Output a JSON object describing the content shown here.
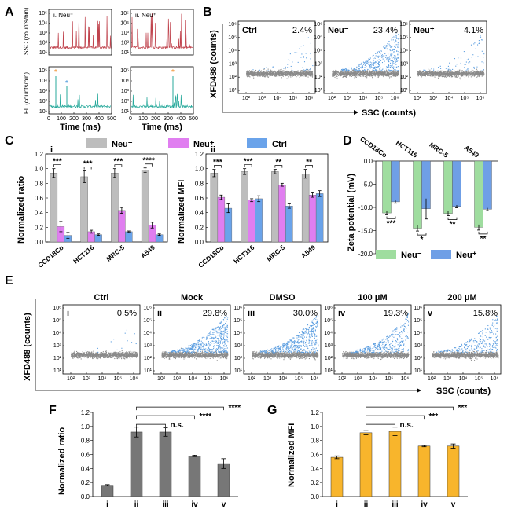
{
  "colors": {
    "red_trace": "#c0444e",
    "teal_trace": "#27a99b",
    "orange_dot": "#f08a24",
    "blue_dot": "#3a8fd8",
    "gray_scatter": "#8a8a8a",
    "blue_scatter": "#5a9de0",
    "bar_gray": "#bdbdbd",
    "bar_magenta": "#e07ef0",
    "bar_blue": "#6aa3ea",
    "zeta_green": "#9fdd9f",
    "zeta_blue": "#6f9fe6",
    "bar_darkgray": "#777777",
    "bar_orange": "#f8b52c"
  },
  "labels": {
    "A": "A",
    "B": "B",
    "C": "C",
    "D": "D",
    "E": "E",
    "F": "F",
    "G": "G"
  },
  "chart_data": [
    {
      "id": "A",
      "type": "line",
      "subpanels": [
        "i. Neu⁻",
        "ii. Neu⁺"
      ],
      "xlabel": "Time (ms)",
      "ylabel_top": "SSC (counts/bin)",
      "ylabel_bottom": "FL (counts/bin)",
      "x_ticks_left": [
        "0",
        "100",
        "200",
        "300",
        "400",
        "500"
      ],
      "x_ticks_right": [
        "0",
        "100",
        "200",
        "300",
        "400",
        "500"
      ],
      "y_ticks": [
        "10¹",
        "10²",
        "10³",
        "10⁴",
        "10⁵"
      ],
      "xlim": [
        0,
        500
      ]
    },
    {
      "id": "B",
      "type": "scatter",
      "xlabel": "SSC (counts)",
      "ylabel": "XFD488 (counts)",
      "x_ticks": [
        "10²",
        "10³",
        "10⁴",
        "10⁵",
        "10⁶"
      ],
      "y_ticks": [
        "10¹",
        "10²",
        "10³",
        "10⁴",
        "10⁵",
        "10⁶"
      ],
      "plots": [
        {
          "name": "Ctrl",
          "percent": "2.4%",
          "positive_fraction": 0.024
        },
        {
          "name": "Neu⁻",
          "percent": "23.4%",
          "positive_fraction": 0.234
        },
        {
          "name": "Neu⁺",
          "percent": "4.1%",
          "positive_fraction": 0.041
        }
      ]
    },
    {
      "id": "C-i",
      "type": "bar",
      "sublabel": "i",
      "ylabel": "Normalized ratio",
      "ylim": [
        0,
        1.2
      ],
      "y_ticks": [
        "0.0",
        "0.2",
        "0.4",
        "0.6",
        "0.8",
        "1.0",
        "1.2"
      ],
      "categories": [
        "CCD18Co",
        "HCT116",
        "MRC-5",
        "A549"
      ],
      "legend": [
        "Neu⁻",
        "Neu⁺",
        "Ctrl"
      ],
      "series": [
        {
          "name": "Neu⁻",
          "values": [
            0.94,
            0.89,
            0.94,
            0.98
          ],
          "errors": [
            0.06,
            0.08,
            0.06,
            0.03
          ]
        },
        {
          "name": "Neu⁺",
          "values": [
            0.21,
            0.14,
            0.43,
            0.23
          ],
          "errors": [
            0.07,
            0.02,
            0.04,
            0.04
          ]
        },
        {
          "name": "Ctrl",
          "values": [
            0.09,
            0.1,
            0.14,
            0.1
          ],
          "errors": [
            0.04,
            0.01,
            0.01,
            0.01
          ]
        }
      ],
      "significance": [
        "***",
        "***",
        "***",
        "****"
      ]
    },
    {
      "id": "C-ii",
      "type": "bar",
      "sublabel": "ii",
      "ylabel": "Normalized MFI",
      "ylim": [
        0,
        1.2
      ],
      "y_ticks": [
        "0.0",
        "0.2",
        "0.4",
        "0.6",
        "0.8",
        "1.0",
        "1.2"
      ],
      "categories": [
        "CCD18Co",
        "HCT116",
        "MRC-5",
        "A549"
      ],
      "series": [
        {
          "name": "Neu⁻",
          "values": [
            0.94,
            0.96,
            0.96,
            0.93
          ],
          "errors": [
            0.05,
            0.04,
            0.03,
            0.06
          ]
        },
        {
          "name": "Neu⁺",
          "values": [
            0.61,
            0.57,
            0.78,
            0.64
          ],
          "errors": [
            0.03,
            0.02,
            0.02,
            0.03
          ]
        },
        {
          "name": "Ctrl",
          "values": [
            0.46,
            0.59,
            0.49,
            0.66
          ],
          "errors": [
            0.06,
            0.04,
            0.03,
            0.04
          ]
        }
      ],
      "significance": [
        "***",
        "***",
        "**",
        "**"
      ]
    },
    {
      "id": "D",
      "type": "bar",
      "ylabel": "Zeta potential (mV)",
      "ylim": [
        -20,
        0
      ],
      "y_ticks": [
        "0.0",
        "-5.0",
        "-10.0",
        "-15.0",
        "-20.0"
      ],
      "categories": [
        "CCD18Co",
        "HCT116",
        "MRC-5",
        "A549"
      ],
      "legend": [
        "Neu⁻",
        "Neu⁺"
      ],
      "series": [
        {
          "name": "Neu⁻",
          "values": [
            -11.2,
            -14.5,
            -11.3,
            -14.3
          ],
          "errors": [
            0.4,
            0.6,
            0.5,
            0.6
          ]
        },
        {
          "name": "Neu⁺",
          "values": [
            -8.8,
            -10.3,
            -9.8,
            -10.4
          ],
          "errors": [
            0.3,
            2.2,
            0.3,
            0.3
          ]
        }
      ],
      "significance": [
        "***",
        "*",
        "**",
        "**"
      ]
    },
    {
      "id": "E",
      "type": "scatter",
      "xlabel": "SSC (counts)",
      "ylabel": "XFD488 (counts)",
      "x_ticks": [
        "10²",
        "10³",
        "10⁴",
        "10⁵",
        "10⁶"
      ],
      "y_ticks": [
        "10¹",
        "10²",
        "10³",
        "10⁴",
        "10⁵",
        "10⁶"
      ],
      "plots": [
        {
          "roman": "i",
          "name": "Ctrl",
          "percent": "0.5%",
          "positive_fraction": 0.005
        },
        {
          "roman": "ii",
          "name": "Mock",
          "percent": "29.8%",
          "positive_fraction": 0.298
        },
        {
          "roman": "iii",
          "name": "DMSO",
          "percent": "30.0%",
          "positive_fraction": 0.3
        },
        {
          "roman": "iv",
          "name": "100 μM",
          "percent": "19.3%",
          "positive_fraction": 0.193
        },
        {
          "roman": "v",
          "name": "200 μM",
          "percent": "15.8%",
          "positive_fraction": 0.158
        }
      ]
    },
    {
      "id": "F",
      "type": "bar",
      "ylabel": "Normalized ratio",
      "ylim": [
        0,
        1.2
      ],
      "y_ticks": [
        "0.0",
        "0.2",
        "0.4",
        "0.6",
        "0.8",
        "1.0",
        "1.2"
      ],
      "categories": [
        "i",
        "ii",
        "iii",
        "iv",
        "v"
      ],
      "values": [
        0.16,
        0.92,
        0.92,
        0.58,
        0.47
      ],
      "errors": [
        0.01,
        0.07,
        0.06,
        0.01,
        0.07
      ],
      "brackets": [
        {
          "from": "ii",
          "to": "iii",
          "label": "n.s."
        },
        {
          "from": "ii",
          "to": "iv",
          "label": "****"
        },
        {
          "from": "ii",
          "to": "v",
          "label": "****"
        }
      ]
    },
    {
      "id": "G",
      "type": "bar",
      "ylabel": "Normalized MFI",
      "ylim": [
        0,
        1.2
      ],
      "y_ticks": [
        "0.0",
        "0.2",
        "0.4",
        "0.6",
        "0.8",
        "1.0",
        "1.2"
      ],
      "categories": [
        "i",
        "ii",
        "iii",
        "iv",
        "v"
      ],
      "values": [
        0.56,
        0.91,
        0.93,
        0.72,
        0.72
      ],
      "errors": [
        0.02,
        0.03,
        0.06,
        0.01,
        0.03
      ],
      "brackets": [
        {
          "from": "ii",
          "to": "iii",
          "label": "n.s."
        },
        {
          "from": "ii",
          "to": "iv",
          "label": "***"
        },
        {
          "from": "ii",
          "to": "v",
          "label": "***"
        }
      ]
    }
  ]
}
